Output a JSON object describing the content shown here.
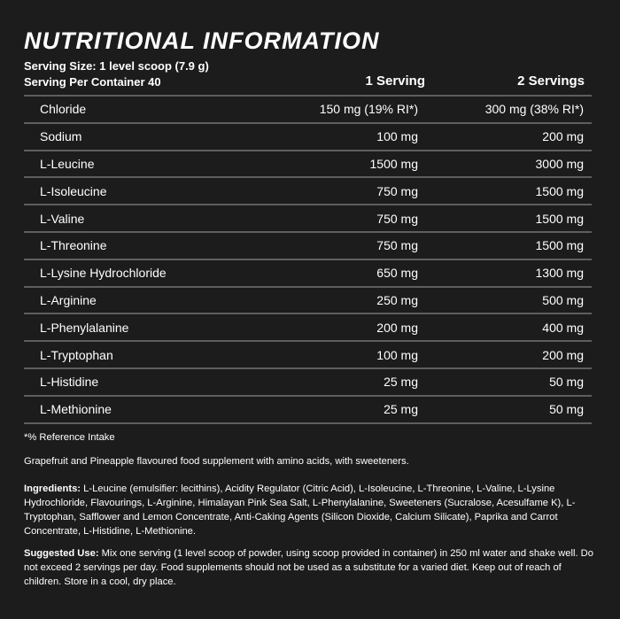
{
  "title": "NUTRITIONAL INFORMATION",
  "serving_size": "Serving Size: 1 level scoop (7.9 g)",
  "servings_per_container": "Serving Per Container 40",
  "columns": [
    "1 Serving",
    "2 Servings"
  ],
  "rows": [
    {
      "name": "Chloride",
      "one": "150 mg (19% RI*)",
      "two": "300 mg (38% RI*)"
    },
    {
      "name": "Sodium",
      "one": "100 mg",
      "two": "200 mg"
    },
    {
      "name": "L-Leucine",
      "one": "1500 mg",
      "two": "3000 mg"
    },
    {
      "name": "L-Isoleucine",
      "one": "750 mg",
      "two": "1500 mg"
    },
    {
      "name": "L-Valine",
      "one": "750 mg",
      "two": "1500 mg"
    },
    {
      "name": "L-Threonine",
      "one": "750 mg",
      "two": "1500 mg"
    },
    {
      "name": "L-Lysine Hydrochloride",
      "one": "650 mg",
      "two": "1300 mg"
    },
    {
      "name": "L-Arginine",
      "one": "250 mg",
      "two": "500 mg"
    },
    {
      "name": "L-Phenylalanine",
      "one": "200 mg",
      "two": "400 mg"
    },
    {
      "name": "L-Tryptophan",
      "one": "100 mg",
      "two": "200 mg"
    },
    {
      "name": "L-Histidine",
      "one": "25 mg",
      "two": "50 mg"
    },
    {
      "name": "L-Methionine",
      "one": "25 mg",
      "two": "50 mg"
    }
  ],
  "footnote": "*% Reference Intake",
  "description": "Grapefruit and Pineapple flavoured food supplement with amino acids, with sweeteners.",
  "ingredients_label": "Ingredients:",
  "ingredients": " L-Leucine (emulsifier: lecithins), Acidity Regulator (Citric Acid), L-Isoleucine, L-Threonine, L-Valine, L-Lysine Hydrochloride, Flavourings, L-Arginine, Himalayan Pink Sea Salt, L-Phenylalanine, Sweeteners (Sucralose, Acesulfame K), L-Tryptophan, Safflower and Lemon Concentrate, Anti-Caking Agents (Silicon Dioxide, Calcium Silicate), Paprika and Carrot Concentrate, L-Histidine, L-Methionine.",
  "use_label": "Suggested Use:",
  "use": " Mix one serving (1 level scoop of powder, using scoop provided in container) in 250 ml water and shake well. Do not exceed 2 servings per day. Food supplements should not be used as a substitute for a varied diet. Keep out of reach of children. Store in a cool, dry place."
}
